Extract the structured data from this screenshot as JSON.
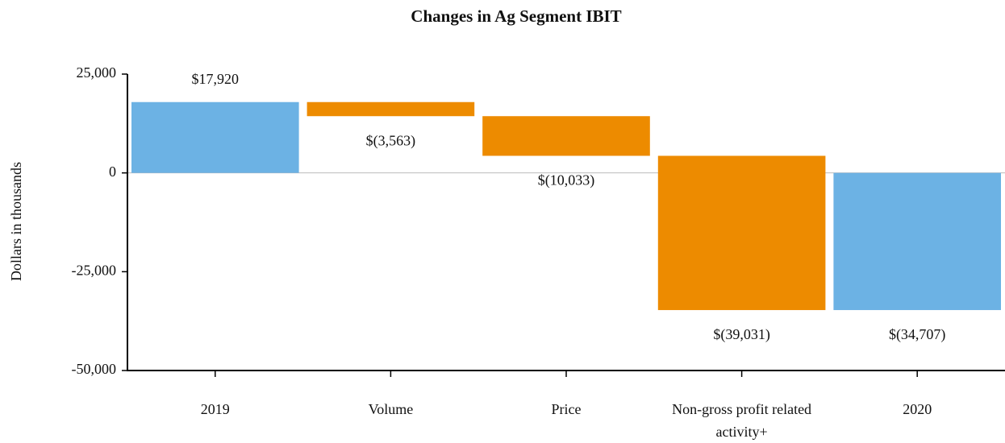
{
  "chart_data": {
    "type": "waterfall",
    "title": "Changes in Ag Segment IBIT",
    "y_label": "Dollars in thousands",
    "categories": [
      "2019",
      "Volume",
      "Price",
      "Non-gross profit related activity+",
      "2020"
    ],
    "values": [
      17920,
      -3563,
      -10033,
      -39031,
      -34707
    ],
    "value_labels": [
      "$17,920",
      "$(3,563)",
      "$(10,033)",
      "$(39,031)",
      "$(34,707)"
    ],
    "measure": [
      "total",
      "relative",
      "relative",
      "relative",
      "total"
    ],
    "colors": [
      "#6cb2e4",
      "#ed8b00",
      "#ed8b00",
      "#ed8b00",
      "#6cb2e4"
    ],
    "ylim": [
      -50000,
      25000
    ],
    "yticks": [
      {
        "value": 25000,
        "label": "25,000"
      },
      0,
      {
        "value": -25000,
        "label": "-25,000"
      },
      {
        "value": -50000,
        "label": "-50,000"
      }
    ]
  }
}
